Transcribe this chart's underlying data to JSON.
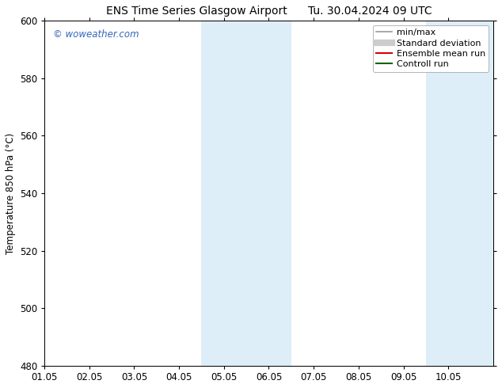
{
  "title_left": "ENS Time Series Glasgow Airport",
  "title_right": "Tu. 30.04.2024 09 UTC",
  "ylabel": "Temperature 850 hPa (°C)",
  "xlim": [
    0,
    10
  ],
  "ylim": [
    480,
    600
  ],
  "yticks": [
    480,
    500,
    520,
    540,
    560,
    580,
    600
  ],
  "xtick_labels": [
    "01.05",
    "02.05",
    "03.05",
    "04.05",
    "05.05",
    "06.05",
    "07.05",
    "08.05",
    "09.05",
    "10.05"
  ],
  "xtick_positions": [
    0,
    1,
    2,
    3,
    4,
    5,
    6,
    7,
    8,
    9
  ],
  "shaded_bands": [
    {
      "x_start": 3.5,
      "x_end": 4.5,
      "color": "#ddeef8"
    },
    {
      "x_start": 4.5,
      "x_end": 5.5,
      "color": "#ddeef8"
    },
    {
      "x_start": 8.5,
      "x_end": 9.5,
      "color": "#ddeef8"
    },
    {
      "x_start": 9.5,
      "x_end": 10.0,
      "color": "#ddeef8"
    }
  ],
  "watermark": "© woweather.com",
  "watermark_color": "#3366bb",
  "legend_items": [
    {
      "label": "min/max",
      "color": "#999999",
      "lw": 1.2,
      "type": "line"
    },
    {
      "label": "Standard deviation",
      "color": "#cccccc",
      "lw": 6,
      "type": "line"
    },
    {
      "label": "Ensemble mean run",
      "color": "#dd0000",
      "lw": 1.5,
      "type": "line"
    },
    {
      "label": "Controll run",
      "color": "#006600",
      "lw": 1.5,
      "type": "line"
    }
  ],
  "bg_color": "#ffffff",
  "plot_bg_color": "#ffffff",
  "spine_color": "#000000",
  "tick_color": "#000000",
  "font_size": 8.5,
  "title_font_size": 10
}
